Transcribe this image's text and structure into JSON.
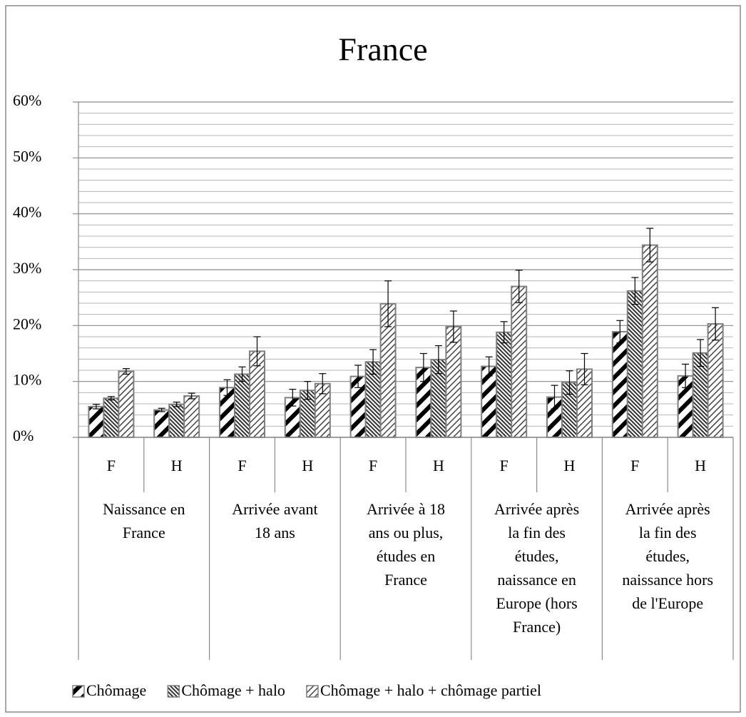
{
  "chart_data": {
    "type": "bar",
    "title": "France",
    "categories": [
      "F",
      "H",
      "F",
      "H",
      "F",
      "H",
      "F",
      "H",
      "F",
      "H"
    ],
    "groups": [
      [
        "Naissance en",
        "France"
      ],
      [
        "Arrivée avant",
        "18 ans"
      ],
      [
        "Arrivée à 18",
        "ans ou plus,",
        "études en",
        "France"
      ],
      [
        "Arrivée après",
        "la fin des",
        "études,",
        "naissance en",
        "Europe (hors",
        "France)"
      ],
      [
        "Arrivée après",
        "la fin des",
        "études,",
        "naissance hors",
        "de l'Europe"
      ]
    ],
    "series": [
      {
        "name": "Chômage",
        "pattern": "wide",
        "values": [
          5.5,
          4.9,
          8.9,
          7.1,
          10.9,
          12.5,
          12.7,
          7.2,
          18.9,
          11.0
        ],
        "errors": [
          0.4,
          0.3,
          1.4,
          1.5,
          2.0,
          2.5,
          1.7,
          2.1,
          2.0,
          2.1
        ]
      },
      {
        "name": "Chômage + halo",
        "pattern": "dense",
        "values": [
          7.0,
          5.9,
          11.3,
          8.4,
          13.5,
          13.9,
          18.8,
          9.8,
          26.2,
          15.1
        ],
        "errors": [
          0.3,
          0.4,
          1.3,
          1.6,
          2.2,
          2.5,
          1.9,
          2.1,
          2.4,
          2.4
        ]
      },
      {
        "name": "Chômage + halo + chômage partiel",
        "pattern": "light",
        "values": [
          11.8,
          7.4,
          15.4,
          9.6,
          23.9,
          19.8,
          27.0,
          12.2,
          34.4,
          20.3
        ],
        "errors": [
          0.5,
          0.5,
          2.6,
          1.8,
          4.1,
          2.8,
          2.9,
          2.8,
          3.0,
          2.9
        ]
      }
    ],
    "ylim": [
      0,
      60
    ],
    "yticks": [
      {
        "value": 0,
        "label": "0%"
      },
      {
        "value": 10,
        "label": "10%"
      },
      {
        "value": 20,
        "label": "20%"
      },
      {
        "value": 30,
        "label": "30%"
      },
      {
        "value": 40,
        "label": "40%"
      },
      {
        "value": 50,
        "label": "50%"
      },
      {
        "value": 60,
        "label": "60%"
      }
    ],
    "minor_yticks": [
      2,
      4,
      6,
      8,
      12,
      14,
      16,
      18,
      22,
      24,
      26,
      28,
      32,
      34,
      36,
      38,
      42,
      44,
      46,
      48,
      52,
      54,
      56,
      58
    ],
    "grid": true,
    "legend": "bottom"
  }
}
